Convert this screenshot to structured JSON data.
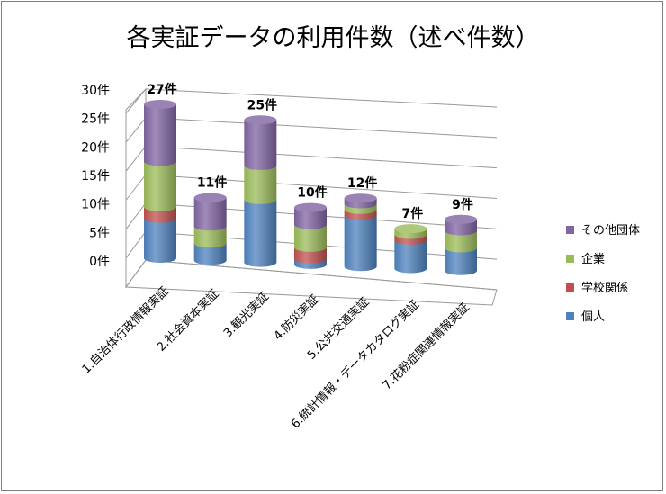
{
  "chart_data": {
    "type": "bar",
    "stacked": true,
    "three_d": true,
    "title": "各実証データの利用件数（述べ件数）",
    "y_ticks": [
      "0件",
      "5件",
      "10件",
      "15件",
      "20件",
      "25件",
      "30件"
    ],
    "ylim": [
      0,
      30
    ],
    "grid": true,
    "legend_position": "right",
    "categories": [
      "1.自治体行政情報実証",
      "2.社会資本実証",
      "3.観光実証",
      "4.防災実証",
      "5.公共交通実証",
      "6.統計情報・データカタログ実証",
      "7.花粉症関連情報実証"
    ],
    "totals": [
      "27件",
      "11件",
      "25件",
      "10件",
      "12件",
      "7件",
      "9件"
    ],
    "series": [
      {
        "name": "個人",
        "color": "#4f81bd",
        "values": [
          7,
          3,
          11,
          1,
          9,
          5,
          4
        ]
      },
      {
        "name": "学校関係",
        "color": "#c0504d",
        "values": [
          2,
          0,
          0,
          2,
          1,
          1,
          0
        ]
      },
      {
        "name": "企業",
        "color": "#9bbb59",
        "values": [
          8,
          3,
          6,
          4,
          1,
          1,
          3
        ]
      },
      {
        "name": "その他団体",
        "color": "#8064a2",
        "values": [
          10,
          5,
          8,
          3,
          1,
          0,
          2
        ]
      }
    ]
  }
}
